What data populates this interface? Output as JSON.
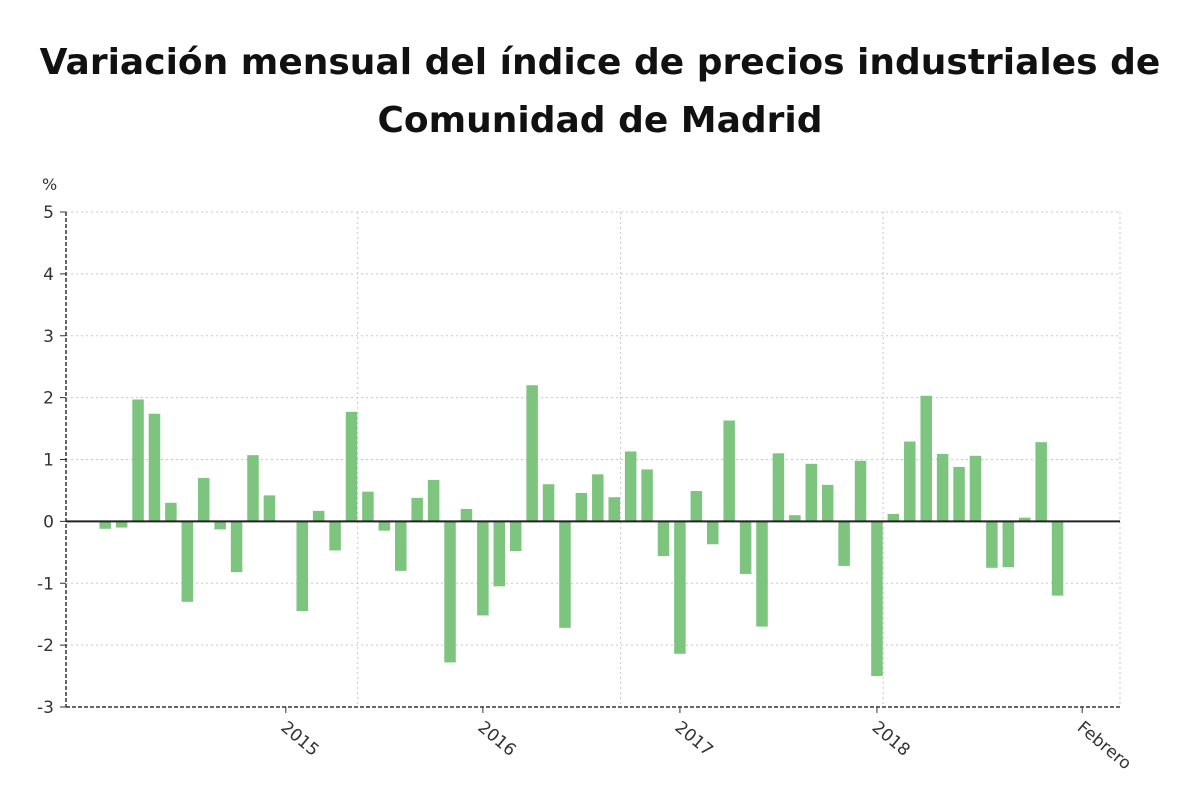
{
  "chart_data": {
    "type": "bar",
    "title_lines": [
      "Variación mensual del índice de precios industriales de",
      "Comunidad de Madrid"
    ],
    "ylabel": "%",
    "ylim": [
      -3,
      5
    ],
    "yticks": [
      "5",
      "4",
      "3",
      "2",
      "1",
      "0",
      "-1",
      "-2",
      "-3"
    ],
    "ytick_values": [
      5,
      4,
      3,
      2,
      1,
      0,
      -1,
      -2,
      -3
    ],
    "xtick_labels": [
      "2015",
      "2016",
      "2017",
      "2018",
      "Febrero"
    ],
    "xtick_positions": [
      11.5,
      23.5,
      35.5,
      47.5,
      60
    ],
    "grid_positions": [
      16,
      32,
      48
    ],
    "grid": true,
    "bar_color": "#7dc47f",
    "series": [
      {
        "name": "Variación mensual",
        "values": [
          -0.12,
          -0.1,
          1.97,
          1.74,
          0.3,
          -1.3,
          0.7,
          -0.13,
          -0.82,
          1.07,
          0.42,
          0.0,
          -1.45,
          0.17,
          -0.47,
          1.77,
          0.48,
          -0.15,
          -0.8,
          0.38,
          0.67,
          -2.28,
          0.2,
          -1.52,
          -1.05,
          -0.48,
          2.2,
          0.6,
          -1.72,
          0.46,
          0.76,
          0.39,
          1.13,
          0.84,
          -0.56,
          -2.14,
          0.49,
          -0.37,
          1.63,
          -0.85,
          -1.7,
          1.1,
          0.1,
          0.93,
          0.59,
          -0.72,
          0.98,
          -2.5,
          0.12,
          1.29,
          2.03,
          1.09,
          0.88,
          1.06,
          -0.75,
          -0.74,
          0.06,
          1.28,
          -1.2
        ]
      }
    ]
  }
}
